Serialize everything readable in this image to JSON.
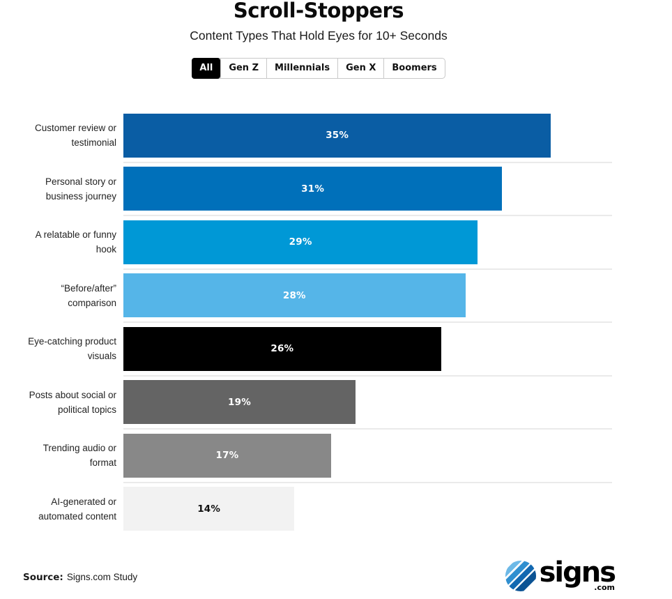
{
  "header": {
    "title": "Scroll-Stoppers",
    "subtitle": "Content Types That Hold Eyes for 10+ Seconds"
  },
  "tabs": {
    "items": [
      {
        "label": "All",
        "active": true
      },
      {
        "label": "Gen Z",
        "active": false
      },
      {
        "label": "Millennials",
        "active": false
      },
      {
        "label": "Gen X",
        "active": false
      },
      {
        "label": "Boomers",
        "active": false
      }
    ]
  },
  "chart_data": {
    "type": "bar",
    "orientation": "horizontal",
    "title": "Scroll-Stoppers",
    "subtitle": "Content Types That Hold Eyes for 10+ Seconds",
    "categories": [
      "Customer review or\ntestimonial",
      "Personal story or\nbusiness journey",
      "A relatable or funny\nhook",
      "“Before/after”\ncomparison",
      "Eye-catching product\nvisuals",
      "Posts about social or\npolitical topics",
      "Trending audio or\nformat",
      "AI-generated or\nautomated content"
    ],
    "values": [
      35,
      31,
      29,
      28,
      26,
      19,
      17,
      14
    ],
    "value_labels": [
      "35%",
      "31%",
      "29%",
      "28%",
      "26%",
      "19%",
      "17%",
      "14%"
    ],
    "bar_colors": [
      "#0a5da4",
      "#0070ba",
      "#0098d6",
      "#55b5e8",
      "#000000",
      "#646464",
      "#888888",
      "#f2f2f2"
    ],
    "value_label_colors": [
      "#ffffff",
      "#ffffff",
      "#ffffff",
      "#ffffff",
      "#ffffff",
      "#ffffff",
      "#ffffff",
      "#111111"
    ],
    "xlim": [
      0,
      40
    ],
    "grid": "row-separators-only",
    "legend": "none"
  },
  "footer": {
    "source_label": "Source:",
    "source_text": "Signs.com Study",
    "logo": {
      "brand": "signs",
      "tld": ".com"
    }
  },
  "colors": {
    "row_separator": "#eaeaea",
    "active_tab_bg": "#000000",
    "active_tab_text": "#ffffff",
    "logo_stripe_1": "#6db9e7",
    "logo_stripe_2": "#2f8fd0",
    "logo_stripe_3": "#1268b1",
    "logo_stripe_4": "#0b5394"
  }
}
